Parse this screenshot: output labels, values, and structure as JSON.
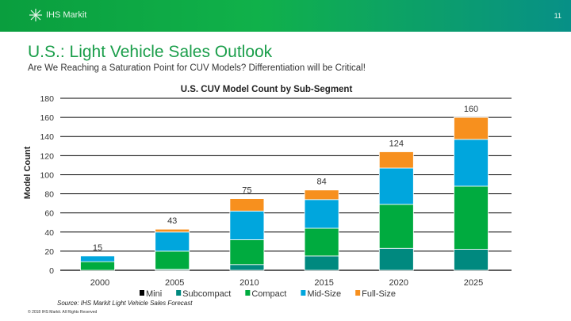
{
  "header": {
    "logo_text": "IHS Markit",
    "page_number": "11"
  },
  "title": "U.S.: Light Vehicle Sales Outlook",
  "subtitle": "Are We Reaching a Saturation Point for CUV Models?  Differentiation will be Critical!",
  "source": "Source: IHS Markit Light Vehicle Sales Forecast",
  "copyright": "© 2018 IHS Markit. All Rights Reserved",
  "chart_data": {
    "type": "bar",
    "stacked": true,
    "title": "U.S. CUV Model Count by Sub-Segment",
    "ylabel": "Model Count",
    "xlabel": "",
    "ylim": [
      0,
      180
    ],
    "yticks": [
      0,
      20,
      40,
      60,
      80,
      100,
      120,
      140,
      160,
      180
    ],
    "grid": true,
    "legend": "bottom",
    "categories": [
      "2000",
      "2005",
      "2010",
      "2015",
      "2020",
      "2025"
    ],
    "series": [
      {
        "name": "Mini",
        "color": "#000000",
        "values": [
          0,
          0,
          0,
          0,
          0,
          0
        ]
      },
      {
        "name": "Subcompact",
        "color": "#00897f",
        "values": [
          0,
          1,
          6,
          15,
          23,
          22
        ]
      },
      {
        "name": "Compact",
        "color": "#00ab3f",
        "values": [
          9,
          19,
          26,
          29,
          46,
          66
        ]
      },
      {
        "name": "Mid-Size",
        "color": "#00a6dd",
        "values": [
          6,
          20,
          30,
          30,
          38,
          49
        ]
      },
      {
        "name": "Full-Size",
        "color": "#f7901e",
        "values": [
          0,
          3,
          13,
          10,
          17,
          23
        ]
      }
    ],
    "totals": [
      "15",
      "43",
      "75",
      "84",
      "124",
      "160"
    ]
  }
}
